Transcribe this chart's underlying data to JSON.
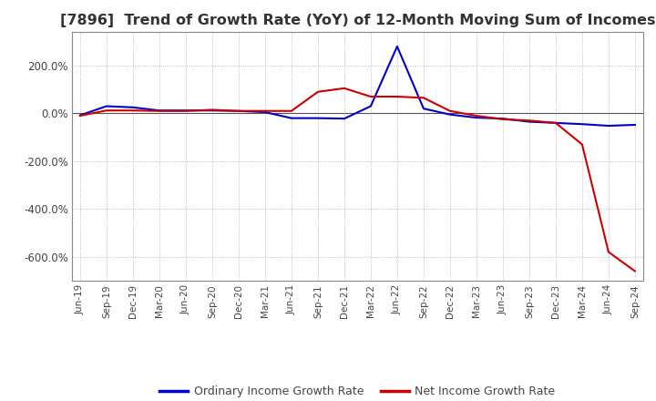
{
  "title": "[7896]  Trend of Growth Rate (YoY) of 12-Month Moving Sum of Incomes",
  "title_fontsize": 11.5,
  "legend_labels": [
    "Ordinary Income Growth Rate",
    "Net Income Growth Rate"
  ],
  "legend_colors": [
    "#0000cc",
    "#cc0000"
  ],
  "x_labels": [
    "Jun-19",
    "Sep-19",
    "Dec-19",
    "Mar-20",
    "Jun-20",
    "Sep-20",
    "Dec-20",
    "Mar-21",
    "Jun-21",
    "Sep-21",
    "Dec-21",
    "Mar-22",
    "Jun-22",
    "Sep-22",
    "Dec-22",
    "Mar-23",
    "Jun-23",
    "Sep-23",
    "Dec-23",
    "Mar-24",
    "Jun-24",
    "Sep-24"
  ],
  "ordinary_income": [
    -8,
    30,
    25,
    12,
    12,
    12,
    10,
    5,
    -20,
    -20,
    -22,
    30,
    280,
    20,
    -5,
    -18,
    -22,
    -35,
    -40,
    -45,
    -52,
    -48
  ],
  "net_income": [
    -10,
    12,
    12,
    10,
    10,
    15,
    10,
    10,
    10,
    90,
    105,
    70,
    70,
    65,
    10,
    -10,
    -25,
    -30,
    -40,
    -130,
    -580,
    -660
  ],
  "ylim": [
    -700,
    340
  ],
  "yticks": [
    200,
    0,
    -200,
    -400,
    -600
  ],
  "background_color": "#ffffff",
  "grid_color": "#aaaaaa",
  "plot_bg_color": "#ffffff"
}
